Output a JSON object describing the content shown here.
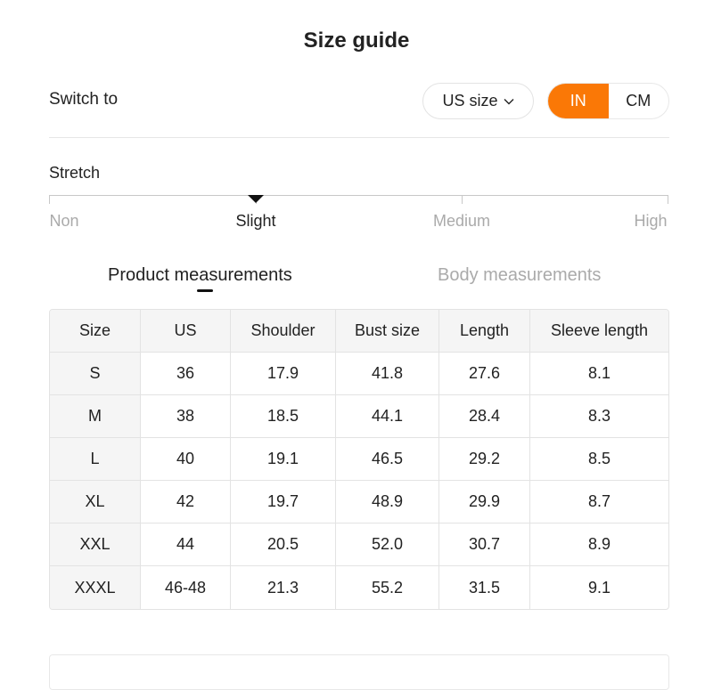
{
  "title": "Size guide",
  "switch_to": "Switch to",
  "size_system": {
    "label": "US size",
    "icon": "chevron-down-icon"
  },
  "units": {
    "options": [
      "IN",
      "CM"
    ],
    "selected": "IN",
    "accent": "#fa7806"
  },
  "stretch": {
    "label": "Stretch",
    "levels": [
      "Non",
      "Slight",
      "Medium",
      "High"
    ],
    "selected": "Slight"
  },
  "tabs": [
    {
      "label": "Product measurements",
      "active": true
    },
    {
      "label": "Body measurements",
      "active": false
    }
  ],
  "table": {
    "headers": [
      "Size",
      "US",
      "Shoulder",
      "Bust size",
      "Length",
      "Sleeve length"
    ],
    "rows": [
      [
        "S",
        "36",
        "17.9",
        "41.8",
        "27.6",
        "8.1"
      ],
      [
        "M",
        "38",
        "18.5",
        "44.1",
        "28.4",
        "8.3"
      ],
      [
        "L",
        "40",
        "19.1",
        "46.5",
        "29.2",
        "8.5"
      ],
      [
        "XL",
        "42",
        "19.7",
        "48.9",
        "29.9",
        "8.7"
      ],
      [
        "XXL",
        "44",
        "20.5",
        "52.0",
        "30.7",
        "8.9"
      ],
      [
        "XXXL",
        "46-48",
        "21.3",
        "55.2",
        "31.5",
        "9.1"
      ]
    ]
  }
}
